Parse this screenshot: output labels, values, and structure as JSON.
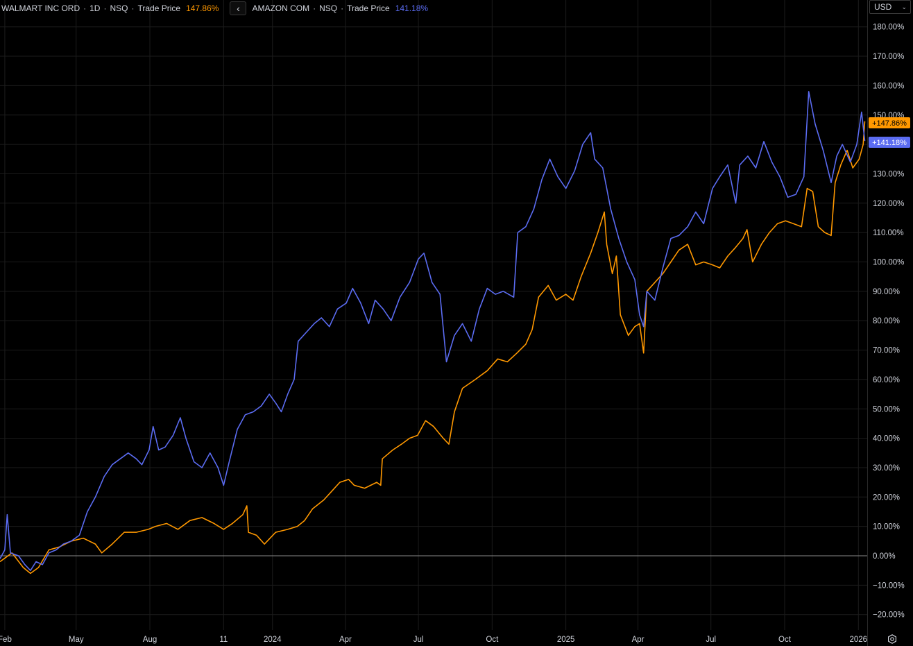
{
  "legend": {
    "walmart": {
      "symbol": "WALMART INC ORD",
      "interval": "1D",
      "exchange": "NSQ",
      "source": "Trade Price",
      "value": "147.86%"
    },
    "amazon": {
      "symbol": "AMAZON COM",
      "exchange": "NSQ",
      "source": "Trade Price",
      "value": "141.18%"
    },
    "separator": "·",
    "collapse_glyph": "‹"
  },
  "currency": {
    "label": "USD",
    "chevron": "⌄"
  },
  "colors": {
    "walmart": "#ff9800",
    "amazon": "#5b6cf2",
    "grid": "#1c1c1c",
    "zero_line": "#8a8a8a",
    "axis_text": "#d1d4dc",
    "background": "#000000"
  },
  "icons": {
    "collapse": "chevron-left-icon",
    "currency_dropdown": "chevron-down-icon",
    "settings": "gear-icon"
  },
  "chart_data": {
    "type": "line",
    "ylabel_unit": "%",
    "ylim": [
      -24,
      184
    ],
    "y_ticks": [
      {
        "value": 180,
        "label": "180.00%"
      },
      {
        "value": 170,
        "label": "170.00%"
      },
      {
        "value": 160,
        "label": "160.00%"
      },
      {
        "value": 150,
        "label": "150.00%"
      },
      {
        "value": 140,
        "label": "140.00%"
      },
      {
        "value": 130,
        "label": "130.00%"
      },
      {
        "value": 120,
        "label": "120.00%"
      },
      {
        "value": 110,
        "label": "110.00%"
      },
      {
        "value": 100,
        "label": "100.00%"
      },
      {
        "value": 90,
        "label": "90.00%"
      },
      {
        "value": 80,
        "label": "80.00%"
      },
      {
        "value": 70,
        "label": "70.00%"
      },
      {
        "value": 60,
        "label": "60.00%"
      },
      {
        "value": 50,
        "label": "50.00%"
      },
      {
        "value": 40,
        "label": "40.00%"
      },
      {
        "value": 30,
        "label": "30.00%"
      },
      {
        "value": 20,
        "label": "20.00%"
      },
      {
        "value": 10,
        "label": "10.00%"
      },
      {
        "value": 0,
        "label": "0.00%"
      },
      {
        "value": -10,
        "label": "−10.00%"
      },
      {
        "value": -20,
        "label": "−20.00%"
      }
    ],
    "xlim": [
      "2023-01-26",
      "2026-01-12"
    ],
    "x_ticks": [
      {
        "date": "2023-02-01",
        "label": "Feb"
      },
      {
        "date": "2023-05-01",
        "label": "May"
      },
      {
        "date": "2023-08-01",
        "label": "Aug"
      },
      {
        "date": "2023-11-01",
        "label": "11"
      },
      {
        "date": "2024-01-01",
        "label": "2024"
      },
      {
        "date": "2024-04-01",
        "label": "Apr"
      },
      {
        "date": "2024-07-01",
        "label": "Jul"
      },
      {
        "date": "2024-10-01",
        "label": "Oct"
      },
      {
        "date": "2025-01-01",
        "label": "2025"
      },
      {
        "date": "2025-04-01",
        "label": "Apr"
      },
      {
        "date": "2025-07-01",
        "label": "Jul"
      },
      {
        "date": "2025-10-01",
        "label": "Oct"
      },
      {
        "date": "2026-01-01",
        "label": "2026"
      }
    ],
    "series": [
      {
        "name": "WALMART INC ORD",
        "color": "#ff9800",
        "last_label": "+147.86%",
        "points": [
          [
            "2023-01-26",
            -2
          ],
          [
            "2023-02-10",
            1
          ],
          [
            "2023-02-24",
            -4
          ],
          [
            "2023-03-05",
            -6
          ],
          [
            "2023-03-15",
            -4
          ],
          [
            "2023-03-28",
            2
          ],
          [
            "2023-04-10",
            3
          ],
          [
            "2023-04-25",
            5
          ],
          [
            "2023-05-10",
            6
          ],
          [
            "2023-05-25",
            4
          ],
          [
            "2023-06-02",
            1
          ],
          [
            "2023-06-15",
            4
          ],
          [
            "2023-06-30",
            8
          ],
          [
            "2023-07-15",
            8
          ],
          [
            "2023-07-30",
            9
          ],
          [
            "2023-08-08",
            10
          ],
          [
            "2023-08-22",
            11
          ],
          [
            "2023-09-05",
            9
          ],
          [
            "2023-09-20",
            12
          ],
          [
            "2023-10-05",
            13
          ],
          [
            "2023-10-20",
            11
          ],
          [
            "2023-11-01",
            9
          ],
          [
            "2023-11-12",
            11
          ],
          [
            "2023-11-25",
            14
          ],
          [
            "2023-11-30",
            17
          ],
          [
            "2023-12-02",
            8
          ],
          [
            "2023-12-12",
            7
          ],
          [
            "2023-12-22",
            4
          ],
          [
            "2024-01-05",
            8
          ],
          [
            "2024-01-20",
            9
          ],
          [
            "2024-02-01",
            10
          ],
          [
            "2024-02-10",
            12
          ],
          [
            "2024-02-20",
            16
          ],
          [
            "2024-03-05",
            19
          ],
          [
            "2024-03-15",
            22
          ],
          [
            "2024-03-25",
            25
          ],
          [
            "2024-04-05",
            26
          ],
          [
            "2024-04-12",
            24
          ],
          [
            "2024-04-25",
            23
          ],
          [
            "2024-05-10",
            25
          ],
          [
            "2024-05-15",
            24
          ],
          [
            "2024-05-17",
            33
          ],
          [
            "2024-05-30",
            36
          ],
          [
            "2024-06-10",
            38
          ],
          [
            "2024-06-20",
            40
          ],
          [
            "2024-06-30",
            41
          ],
          [
            "2024-07-10",
            46
          ],
          [
            "2024-07-20",
            44
          ],
          [
            "2024-08-01",
            40
          ],
          [
            "2024-08-08",
            38
          ],
          [
            "2024-08-15",
            49
          ],
          [
            "2024-08-25",
            57
          ],
          [
            "2024-09-10",
            60
          ],
          [
            "2024-09-25",
            63
          ],
          [
            "2024-10-08",
            67
          ],
          [
            "2024-10-20",
            66
          ],
          [
            "2024-11-01",
            69
          ],
          [
            "2024-11-12",
            72
          ],
          [
            "2024-11-20",
            77
          ],
          [
            "2024-11-28",
            88
          ],
          [
            "2024-12-10",
            92
          ],
          [
            "2024-12-20",
            87
          ],
          [
            "2025-01-01",
            89
          ],
          [
            "2025-01-10",
            87
          ],
          [
            "2025-01-20",
            95
          ],
          [
            "2025-02-01",
            103
          ],
          [
            "2025-02-10",
            110
          ],
          [
            "2025-02-18",
            117
          ],
          [
            "2025-02-21",
            106
          ],
          [
            "2025-02-28",
            96
          ],
          [
            "2025-03-05",
            102
          ],
          [
            "2025-03-10",
            82
          ],
          [
            "2025-03-20",
            75
          ],
          [
            "2025-03-28",
            78
          ],
          [
            "2025-04-03",
            79
          ],
          [
            "2025-04-08",
            69
          ],
          [
            "2025-04-12",
            90
          ],
          [
            "2025-04-22",
            93
          ],
          [
            "2025-05-02",
            96
          ],
          [
            "2025-05-12",
            100
          ],
          [
            "2025-05-22",
            104
          ],
          [
            "2025-06-02",
            106
          ],
          [
            "2025-06-12",
            99
          ],
          [
            "2025-06-22",
            100
          ],
          [
            "2025-07-03",
            99
          ],
          [
            "2025-07-12",
            98
          ],
          [
            "2025-07-22",
            102
          ],
          [
            "2025-08-01",
            105
          ],
          [
            "2025-08-10",
            108
          ],
          [
            "2025-08-15",
            111
          ],
          [
            "2025-08-22",
            100
          ],
          [
            "2025-09-02",
            106
          ],
          [
            "2025-09-12",
            110
          ],
          [
            "2025-09-22",
            113
          ],
          [
            "2025-10-02",
            114
          ],
          [
            "2025-10-12",
            113
          ],
          [
            "2025-10-22",
            112
          ],
          [
            "2025-10-29",
            125
          ],
          [
            "2025-11-05",
            124
          ],
          [
            "2025-11-12",
            112
          ],
          [
            "2025-11-20",
            110
          ],
          [
            "2025-11-28",
            109
          ],
          [
            "2025-12-03",
            127
          ],
          [
            "2025-12-10",
            133
          ],
          [
            "2025-12-18",
            138
          ],
          [
            "2025-12-25",
            132
          ],
          [
            "2026-01-02",
            135
          ],
          [
            "2026-01-07",
            140
          ],
          [
            "2026-01-09",
            147.86
          ]
        ]
      },
      {
        "name": "AMAZON COM",
        "color": "#5b6cf2",
        "last_label": "+141.18%",
        "points": [
          [
            "2023-01-26",
            -1
          ],
          [
            "2023-02-01",
            2
          ],
          [
            "2023-02-04",
            14
          ],
          [
            "2023-02-08",
            1
          ],
          [
            "2023-02-18",
            0
          ],
          [
            "2023-02-26",
            -3
          ],
          [
            "2023-03-05",
            -5
          ],
          [
            "2023-03-12",
            -2
          ],
          [
            "2023-03-20",
            -3
          ],
          [
            "2023-03-28",
            1
          ],
          [
            "2023-04-06",
            2
          ],
          [
            "2023-04-15",
            4
          ],
          [
            "2023-04-25",
            5
          ],
          [
            "2023-05-05",
            7
          ],
          [
            "2023-05-15",
            15
          ],
          [
            "2023-05-25",
            20
          ],
          [
            "2023-06-05",
            27
          ],
          [
            "2023-06-15",
            31
          ],
          [
            "2023-06-25",
            33
          ],
          [
            "2023-07-05",
            35
          ],
          [
            "2023-07-15",
            33
          ],
          [
            "2023-07-22",
            31
          ],
          [
            "2023-07-31",
            36
          ],
          [
            "2023-08-05",
            44
          ],
          [
            "2023-08-12",
            36
          ],
          [
            "2023-08-20",
            37
          ],
          [
            "2023-08-30",
            41
          ],
          [
            "2023-09-08",
            47
          ],
          [
            "2023-09-15",
            40
          ],
          [
            "2023-09-25",
            32
          ],
          [
            "2023-10-05",
            30
          ],
          [
            "2023-10-15",
            35
          ],
          [
            "2023-10-25",
            30
          ],
          [
            "2023-11-01",
            24
          ],
          [
            "2023-11-08",
            32
          ],
          [
            "2023-11-18",
            43
          ],
          [
            "2023-11-28",
            48
          ],
          [
            "2023-12-08",
            49
          ],
          [
            "2023-12-18",
            51
          ],
          [
            "2023-12-28",
            55
          ],
          [
            "2024-01-05",
            52
          ],
          [
            "2024-01-12",
            49
          ],
          [
            "2024-01-20",
            55
          ],
          [
            "2024-01-28",
            60
          ],
          [
            "2024-02-02",
            73
          ],
          [
            "2024-02-12",
            76
          ],
          [
            "2024-02-22",
            79
          ],
          [
            "2024-03-02",
            81
          ],
          [
            "2024-03-12",
            78
          ],
          [
            "2024-03-22",
            84
          ],
          [
            "2024-04-02",
            86
          ],
          [
            "2024-04-10",
            91
          ],
          [
            "2024-04-20",
            86
          ],
          [
            "2024-04-30",
            79
          ],
          [
            "2024-05-08",
            87
          ],
          [
            "2024-05-18",
            84
          ],
          [
            "2024-05-28",
            80
          ],
          [
            "2024-06-08",
            88
          ],
          [
            "2024-06-20",
            93
          ],
          [
            "2024-07-01",
            101
          ],
          [
            "2024-07-08",
            103
          ],
          [
            "2024-07-18",
            93
          ],
          [
            "2024-07-28",
            89
          ],
          [
            "2024-08-05",
            66
          ],
          [
            "2024-08-15",
            75
          ],
          [
            "2024-08-25",
            79
          ],
          [
            "2024-09-05",
            73
          ],
          [
            "2024-09-15",
            84
          ],
          [
            "2024-09-25",
            91
          ],
          [
            "2024-10-05",
            89
          ],
          [
            "2024-10-15",
            90
          ],
          [
            "2024-10-28",
            88
          ],
          [
            "2024-11-02",
            110
          ],
          [
            "2024-11-12",
            112
          ],
          [
            "2024-11-22",
            118
          ],
          [
            "2024-12-02",
            128
          ],
          [
            "2024-12-12",
            135
          ],
          [
            "2024-12-22",
            129
          ],
          [
            "2025-01-01",
            125
          ],
          [
            "2025-01-12",
            131
          ],
          [
            "2025-01-22",
            140
          ],
          [
            "2025-02-01",
            144
          ],
          [
            "2025-02-06",
            135
          ],
          [
            "2025-02-16",
            132
          ],
          [
            "2025-02-26",
            118
          ],
          [
            "2025-03-08",
            108
          ],
          [
            "2025-03-18",
            100
          ],
          [
            "2025-03-28",
            94
          ],
          [
            "2025-04-03",
            82
          ],
          [
            "2025-04-08",
            78
          ],
          [
            "2025-04-12",
            90
          ],
          [
            "2025-04-22",
            87
          ],
          [
            "2025-05-02",
            98
          ],
          [
            "2025-05-12",
            108
          ],
          [
            "2025-05-22",
            109
          ],
          [
            "2025-06-02",
            112
          ],
          [
            "2025-06-12",
            117
          ],
          [
            "2025-06-22",
            113
          ],
          [
            "2025-07-03",
            125
          ],
          [
            "2025-07-12",
            129
          ],
          [
            "2025-07-22",
            133
          ],
          [
            "2025-08-01",
            120
          ],
          [
            "2025-08-06",
            133
          ],
          [
            "2025-08-16",
            136
          ],
          [
            "2025-08-26",
            132
          ],
          [
            "2025-09-05",
            141
          ],
          [
            "2025-09-15",
            134
          ],
          [
            "2025-09-25",
            129
          ],
          [
            "2025-10-05",
            122
          ],
          [
            "2025-10-15",
            123
          ],
          [
            "2025-10-25",
            129
          ],
          [
            "2025-10-31",
            158
          ],
          [
            "2025-11-08",
            147
          ],
          [
            "2025-11-18",
            138
          ],
          [
            "2025-11-28",
            127
          ],
          [
            "2025-12-05",
            136
          ],
          [
            "2025-12-12",
            140
          ],
          [
            "2025-12-22",
            134
          ],
          [
            "2025-12-30",
            140
          ],
          [
            "2026-01-05",
            151
          ],
          [
            "2026-01-09",
            141.18
          ]
        ]
      }
    ]
  }
}
